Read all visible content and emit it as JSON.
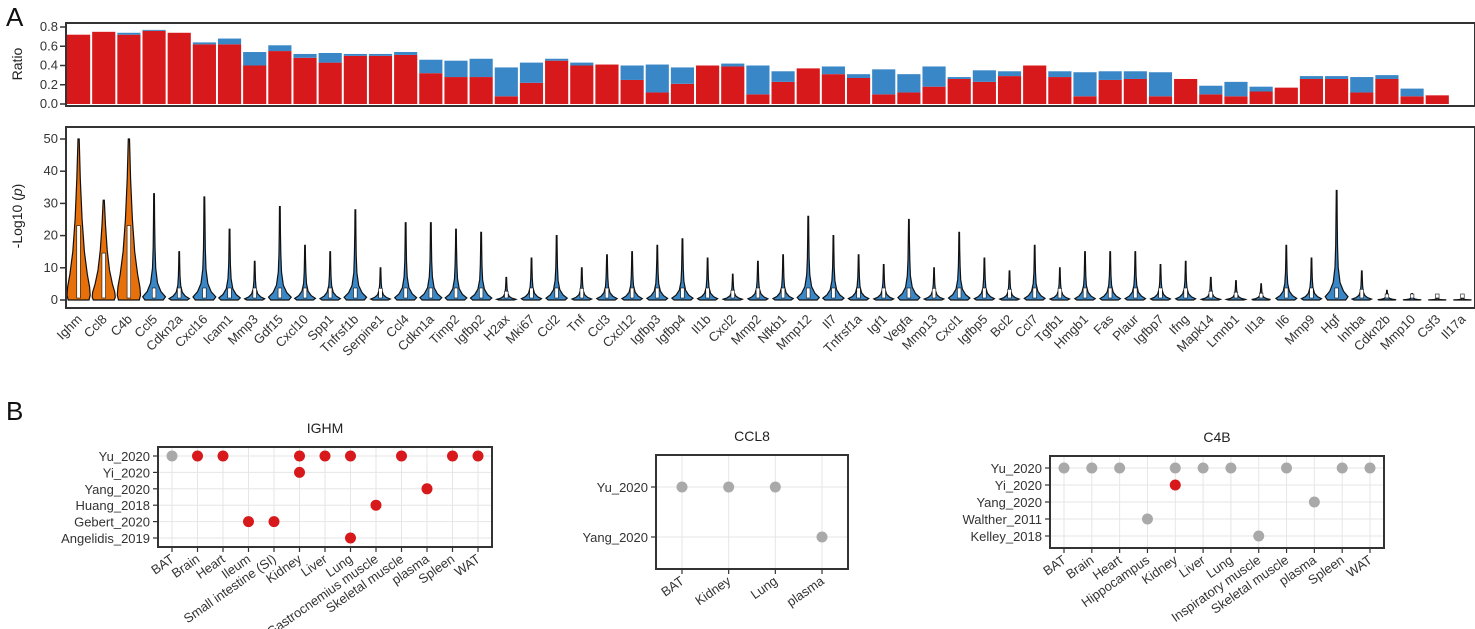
{
  "panel_letters": [
    "A",
    "B"
  ],
  "colors": {
    "red": "#d7191c",
    "blue": "#3a87c8",
    "orange": "#e8700a",
    "grey": "#a9a9a9",
    "frame": "#333333"
  },
  "chart_data": [
    {
      "type": "bar",
      "stacked": true,
      "ylabel": "Ratio",
      "ylim": [
        0,
        0.8
      ],
      "yticks": [
        "0.0",
        "0.2",
        "0.4",
        "0.6",
        "0.8"
      ],
      "categories": [
        "Ighm",
        "Ccl8",
        "C4b",
        "Ccl5",
        "Cdkn2a",
        "Cxcl16",
        "Icam1",
        "Mmp3",
        "Gdf15",
        "Cxcl10",
        "Spp1",
        "Tnfrsf1b",
        "Serpine1",
        "Ccl4",
        "Cdkn1a",
        "Timp2",
        "Igfbp2",
        "H2ax",
        "Mki67",
        "Ccl2",
        "Tnf",
        "Ccl3",
        "Cxcl12",
        "Igfbp3",
        "Igfbp4",
        "Il1b",
        "Cxcl2",
        "Mmp2",
        "Nfkb1",
        "Mmp12",
        "Il7",
        "Tnfrsf1a",
        "Igf1",
        "Vegfa",
        "Mmp13",
        "Cxcl1",
        "Igfbp5",
        "Bcl2",
        "Ccl7",
        "Tgfb1",
        "Hmgb1",
        "Fas",
        "Plaur",
        "Igfbp7",
        "Ifng",
        "Mapk14",
        "Lmnb1",
        "Il1a",
        "Il6",
        "Mmp9",
        "Hgf",
        "Inhba",
        "Cdkn2b",
        "Mmp10",
        "Csf3",
        "Il17a"
      ],
      "series": [
        {
          "values": [
            0.72,
            0.75,
            0.72,
            0.76,
            0.74,
            0.62,
            0.62,
            0.4,
            0.55,
            0.48,
            0.43,
            0.5,
            0.5,
            0.51,
            0.32,
            0.28,
            0.28,
            0.08,
            0.22,
            0.45,
            0.4,
            0.41,
            0.25,
            0.12,
            0.21,
            0.4,
            0.39,
            0.1,
            0.23,
            0.37,
            0.31,
            0.27,
            0.1,
            0.12,
            0.18,
            0.26,
            0.23,
            0.29,
            0.4,
            0.28,
            0.08,
            0.25,
            0.26,
            0.08,
            0.26,
            0.1,
            0.08,
            0.13,
            0.17,
            0.26,
            0.26,
            0.12,
            0.26,
            0.08,
            0.09,
            0.0
          ]
        },
        {
          "values": [
            0.0,
            0.0,
            0.02,
            0.01,
            0.0,
            0.02,
            0.06,
            0.14,
            0.06,
            0.04,
            0.1,
            0.02,
            0.02,
            0.03,
            0.14,
            0.17,
            0.19,
            0.3,
            0.21,
            0.02,
            0.03,
            0.0,
            0.15,
            0.29,
            0.17,
            0.0,
            0.03,
            0.3,
            0.11,
            0.0,
            0.08,
            0.04,
            0.26,
            0.19,
            0.21,
            0.02,
            0.12,
            0.05,
            0.0,
            0.06,
            0.25,
            0.09,
            0.08,
            0.25,
            0.0,
            0.09,
            0.15,
            0.05,
            0.0,
            0.03,
            0.03,
            0.16,
            0.04,
            0.08,
            0.0,
            0.0
          ]
        }
      ]
    },
    {
      "type": "violin",
      "ylabel": "-Log10 (",
      "ylabel_italic": "p",
      "ylabel_tail": ")",
      "ylim": [
        0,
        50
      ],
      "yticks": [
        "0",
        "10",
        "20",
        "30",
        "40",
        "50"
      ],
      "highlighted": [
        "Ighm",
        "Ccl8",
        "C4b"
      ],
      "max_values": [
        50,
        31,
        50,
        33,
        15,
        32,
        22,
        12,
        29,
        17,
        15,
        28,
        10,
        24,
        24,
        22,
        21,
        7,
        13,
        20,
        10,
        14,
        15,
        17,
        19,
        13,
        8,
        12,
        14,
        26,
        20,
        14,
        11,
        25,
        10,
        21,
        13,
        9,
        17,
        10,
        15,
        15,
        15,
        11,
        12,
        7,
        6,
        5,
        17,
        13,
        34,
        9,
        3,
        2,
        1,
        1
      ]
    },
    {
      "type": "dotplot",
      "title": "IGHM",
      "rows": [
        "Yu_2020",
        "Yi_2020",
        "Yang_2020",
        "Huang_2018",
        "Gebert_2020",
        "Angelidis_2019"
      ],
      "columns": [
        "BAT",
        "Brain",
        "Heart",
        "Ileum",
        "Small intestine (SI)",
        "Kidney",
        "Liver",
        "Lung",
        "Gastrocnemius muscle",
        "Skeletal muscle",
        "plasma",
        "Spleen",
        "WAT"
      ],
      "points": [
        {
          "row": "Yu_2020",
          "col": "BAT",
          "color": "grey"
        },
        {
          "row": "Yu_2020",
          "col": "Brain",
          "color": "red"
        },
        {
          "row": "Yu_2020",
          "col": "Heart",
          "color": "red"
        },
        {
          "row": "Yu_2020",
          "col": "Kidney",
          "color": "red"
        },
        {
          "row": "Yu_2020",
          "col": "Liver",
          "color": "red"
        },
        {
          "row": "Yu_2020",
          "col": "Lung",
          "color": "red"
        },
        {
          "row": "Yu_2020",
          "col": "Skeletal muscle",
          "color": "red"
        },
        {
          "row": "Yu_2020",
          "col": "Spleen",
          "color": "red"
        },
        {
          "row": "Yu_2020",
          "col": "WAT",
          "color": "red"
        },
        {
          "row": "Yi_2020",
          "col": "Kidney",
          "color": "red"
        },
        {
          "row": "Yang_2020",
          "col": "plasma",
          "color": "red"
        },
        {
          "row": "Huang_2018",
          "col": "Gastrocnemius muscle",
          "color": "red"
        },
        {
          "row": "Gebert_2020",
          "col": "Ileum",
          "color": "red"
        },
        {
          "row": "Gebert_2020",
          "col": "Small intestine (SI)",
          "color": "red"
        },
        {
          "row": "Angelidis_2019",
          "col": "Lung",
          "color": "red"
        }
      ]
    },
    {
      "type": "dotplot",
      "title": "CCL8",
      "rows": [
        "Yu_2020",
        "Yang_2020"
      ],
      "columns": [
        "BAT",
        "Kidney",
        "Lung",
        "plasma"
      ],
      "points": [
        {
          "row": "Yu_2020",
          "col": "BAT",
          "color": "grey"
        },
        {
          "row": "Yu_2020",
          "col": "Kidney",
          "color": "grey"
        },
        {
          "row": "Yu_2020",
          "col": "Lung",
          "color": "grey"
        },
        {
          "row": "Yang_2020",
          "col": "plasma",
          "color": "grey"
        }
      ]
    },
    {
      "type": "dotplot",
      "title": "C4B",
      "rows": [
        "Yu_2020",
        "Yi_2020",
        "Yang_2020",
        "Walther_2011",
        "Kelley_2018"
      ],
      "columns": [
        "BAT",
        "Brain",
        "Heart",
        "Hippocampus",
        "Kidney",
        "Liver",
        "Lung",
        "Inspiratory muscle",
        "Skeletal muscle",
        "plasma",
        "Spleen",
        "WAT"
      ],
      "points": [
        {
          "row": "Yu_2020",
          "col": "BAT",
          "color": "grey"
        },
        {
          "row": "Yu_2020",
          "col": "Brain",
          "color": "grey"
        },
        {
          "row": "Yu_2020",
          "col": "Heart",
          "color": "grey"
        },
        {
          "row": "Yu_2020",
          "col": "Kidney",
          "color": "grey"
        },
        {
          "row": "Yu_2020",
          "col": "Liver",
          "color": "grey"
        },
        {
          "row": "Yu_2020",
          "col": "Lung",
          "color": "grey"
        },
        {
          "row": "Yu_2020",
          "col": "Skeletal muscle",
          "color": "grey"
        },
        {
          "row": "Yu_2020",
          "col": "Spleen",
          "color": "grey"
        },
        {
          "row": "Yu_2020",
          "col": "WAT",
          "color": "grey"
        },
        {
          "row": "Yi_2020",
          "col": "Kidney",
          "color": "red"
        },
        {
          "row": "Yang_2020",
          "col": "plasma",
          "color": "grey"
        },
        {
          "row": "Walther_2011",
          "col": "Hippocampus",
          "color": "grey"
        },
        {
          "row": "Kelley_2018",
          "col": "Inspiratory muscle",
          "color": "grey"
        }
      ]
    }
  ]
}
